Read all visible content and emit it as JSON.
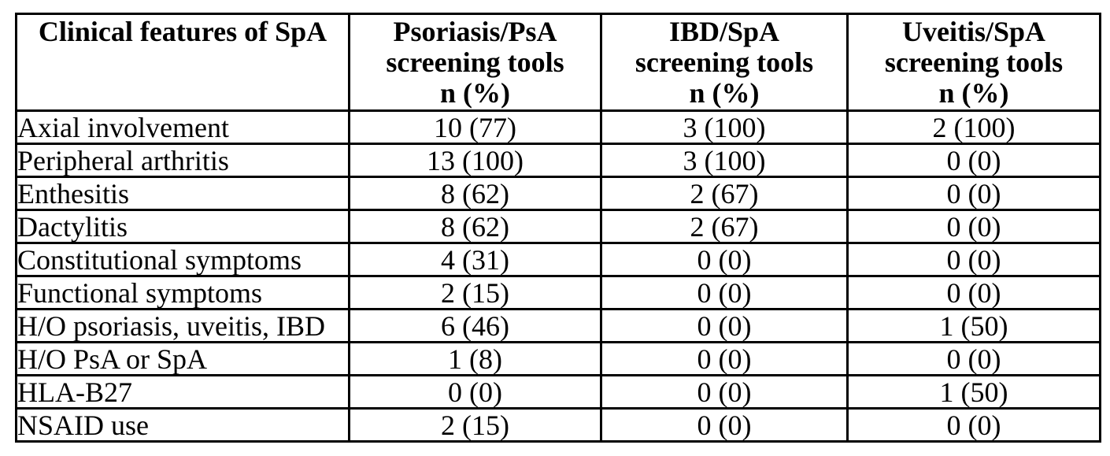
{
  "page": {
    "background": "#ffffff",
    "text_color": "#000000",
    "border_color": "#000000"
  },
  "table": {
    "header": {
      "feature_column": "Clinical features of SpA",
      "value_columns": [
        {
          "lines": [
            "Psoriasis/PsA",
            "screening tools",
            "n (%)"
          ]
        },
        {
          "lines": [
            "IBD/SpA",
            "screening tools",
            "n (%)"
          ]
        },
        {
          "lines": [
            "Uveitis/SpA",
            "screening tools",
            "n (%)"
          ]
        }
      ]
    },
    "rows": [
      {
        "feature": "Axial involvement",
        "values": [
          "10 (77)",
          "3 (100)",
          "2 (100)"
        ]
      },
      {
        "feature": "Peripheral arthritis",
        "values": [
          "13 (100)",
          "3 (100)",
          "0 (0)"
        ]
      },
      {
        "feature": "Enthesitis",
        "values": [
          "8 (62)",
          "2 (67)",
          "0 (0)"
        ]
      },
      {
        "feature": "Dactylitis",
        "values": [
          "8 (62)",
          "2 (67)",
          "0 (0)"
        ]
      },
      {
        "feature": "Constitutional symptoms",
        "values": [
          "4 (31)",
          "0 (0)",
          "0 (0)"
        ]
      },
      {
        "feature": "Functional symptoms",
        "values": [
          "2 (15)",
          "0 (0)",
          "0 (0)"
        ]
      },
      {
        "feature": "H/O psoriasis, uveitis, IBD",
        "values": [
          "6 (46)",
          "0 (0)",
          "1 (50)"
        ]
      },
      {
        "feature": "H/O PsA or SpA",
        "values": [
          "1 (8)",
          "0 (0)",
          "0 (0)"
        ]
      },
      {
        "feature": "HLA-B27",
        "values": [
          "0 (0)",
          "0 (0)",
          "1 (50)"
        ]
      },
      {
        "feature": "NSAID use",
        "values": [
          "2 (15)",
          "0 (0)",
          "0 (0)"
        ]
      }
    ]
  }
}
